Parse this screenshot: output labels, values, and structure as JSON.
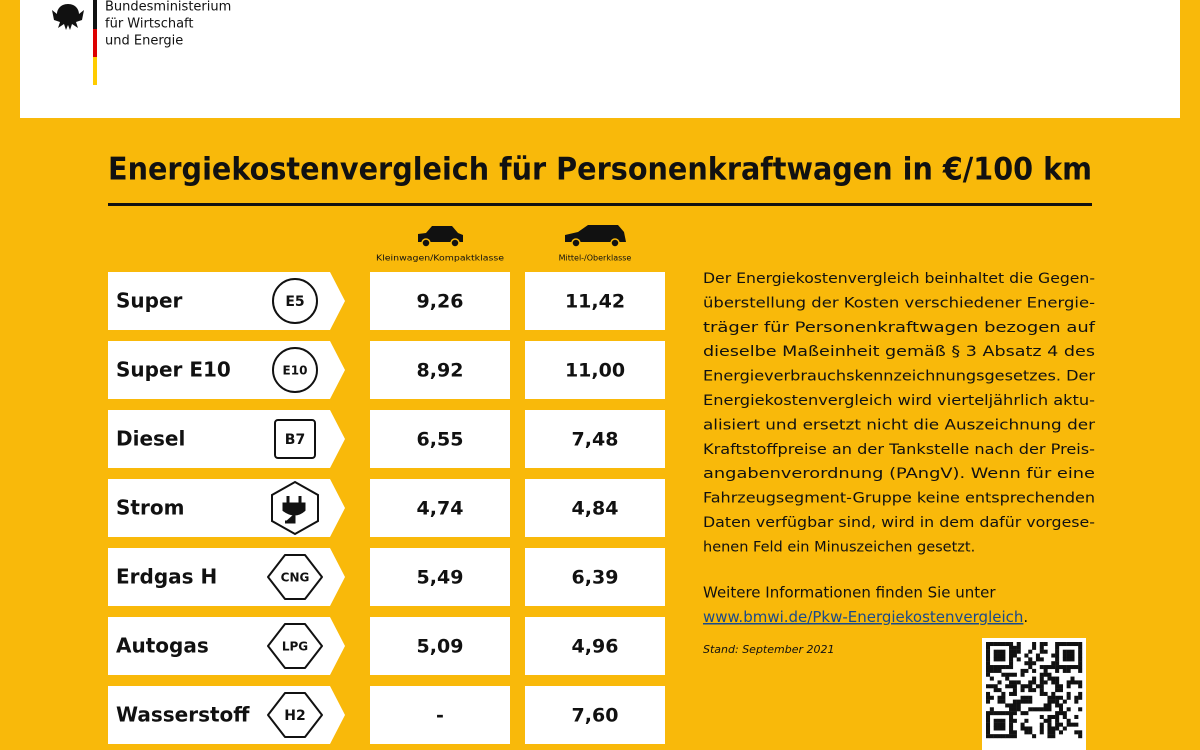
{
  "header": {
    "ministry_lines": [
      "Bundesministerium",
      "für Wirtschaft",
      "und Energie"
    ]
  },
  "title": "Energiekostenvergleich für Personenkraftwagen in €/100 km",
  "table": {
    "columns": [
      "Kleinwagen/Kompaktklasse",
      "Mittel-/Oberklasse"
    ],
    "rows": [
      {
        "name": "Super",
        "badge": "E5",
        "values": [
          "9,26",
          "11,42"
        ]
      },
      {
        "name": "Super E10",
        "badge": "E10",
        "values": [
          "8,92",
          "11,00"
        ]
      },
      {
        "name": "Diesel",
        "badge": "B7",
        "values": [
          "6,55",
          "7,48"
        ]
      },
      {
        "name": "Strom",
        "values": [
          "4,74",
          "4,84"
        ]
      },
      {
        "name": "Erdgas H",
        "badge": "CNG",
        "values": [
          "5,49",
          "6,39"
        ]
      },
      {
        "name": "Autogas",
        "badge": "LPG",
        "values": [
          "5,09",
          "4,96"
        ]
      },
      {
        "name": "Wasserstoff",
        "badge": "H2",
        "values": [
          "-",
          "7,60"
        ]
      }
    ]
  },
  "info": {
    "paragraph_lines": [
      "Der Energiekostenvergleich beinhaltet die Gegen-",
      "überstellung der Kosten verschiedener Energie-",
      "träger für Personenkraftwagen bezogen auf",
      "dieselbe Maßeinheit gemäß § 3 Absatz 4 des",
      "Energieverbrauchskennzeichnungsgesetzes. Der",
      "Energiekostenvergleich wird vierteljährlich aktu-",
      "alisiert und ersetzt nicht die Auszeichnung der",
      "Kraftstoffpreise an der Tankstelle nach der Preis-",
      "angabenverordnung (PAngV). Wenn für eine",
      "Fahrzeugsegment-Gruppe keine entsprechenden",
      "Daten verfügbar sind, wird in dem dafür vorgese-",
      "henen Feld ein Minuszeichen gesetzt."
    ],
    "more_info": "Weitere Informationen finden Sie unter",
    "link": "www.bmwi.de/Pkw-Energiekostenvergleich",
    "link_suffix": ".",
    "stand": "Stand: September 2021"
  }
}
